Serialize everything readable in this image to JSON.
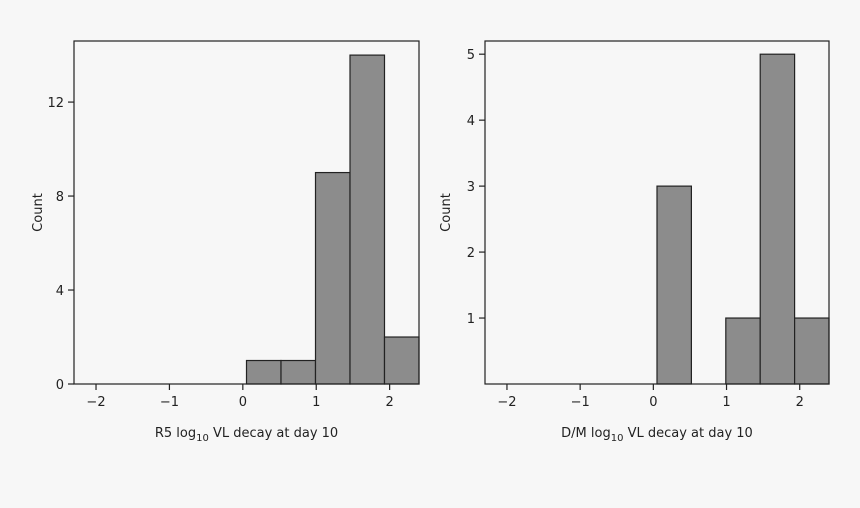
{
  "chart_data": [
    {
      "type": "bar",
      "title": "",
      "xlabel": {
        "pre": "R5 log",
        "sub": "10",
        "post": " VL decay at day 10"
      },
      "ylabel": "Count",
      "xlim": [
        -2.3,
        2.4
      ],
      "ylim": [
        0,
        14.6
      ],
      "xticks": [
        -2,
        -1,
        0,
        1,
        2
      ],
      "xtick_labels": [
        "−2",
        "−1",
        "0",
        "1",
        "2"
      ],
      "yticks": [
        0,
        4,
        8,
        12
      ],
      "ytick_labels": [
        "0",
        "4",
        "8",
        "12"
      ],
      "bin_width": 0.47,
      "bins": [
        {
          "start": 0.05,
          "value": 1
        },
        {
          "start": 0.52,
          "value": 1
        },
        {
          "start": 0.99,
          "value": 9
        },
        {
          "start": 1.46,
          "value": 14
        },
        {
          "start": 1.93,
          "value": 2
        }
      ],
      "grid": false,
      "bar_color": "#8c8c8c"
    },
    {
      "type": "bar",
      "title": "",
      "xlabel": {
        "pre": "D/M log",
        "sub": "10",
        "post": " VL decay at day 10"
      },
      "ylabel": "Count",
      "xlim": [
        -2.3,
        2.4
      ],
      "ylim": [
        0,
        5.2
      ],
      "xticks": [
        -2,
        -1,
        0,
        1,
        2
      ],
      "xtick_labels": [
        "−2",
        "−1",
        "0",
        "1",
        "2"
      ],
      "yticks": [
        1,
        2,
        3,
        4,
        5
      ],
      "ytick_labels": [
        "1",
        "2",
        "3",
        "4",
        "5"
      ],
      "bin_width": 0.47,
      "bins": [
        {
          "start": 0.05,
          "value": 3
        },
        {
          "start": 0.52,
          "value": 0
        },
        {
          "start": 0.99,
          "value": 1
        },
        {
          "start": 1.46,
          "value": 5
        },
        {
          "start": 1.93,
          "value": 1
        }
      ],
      "grid": false,
      "bar_color": "#8c8c8c"
    }
  ]
}
